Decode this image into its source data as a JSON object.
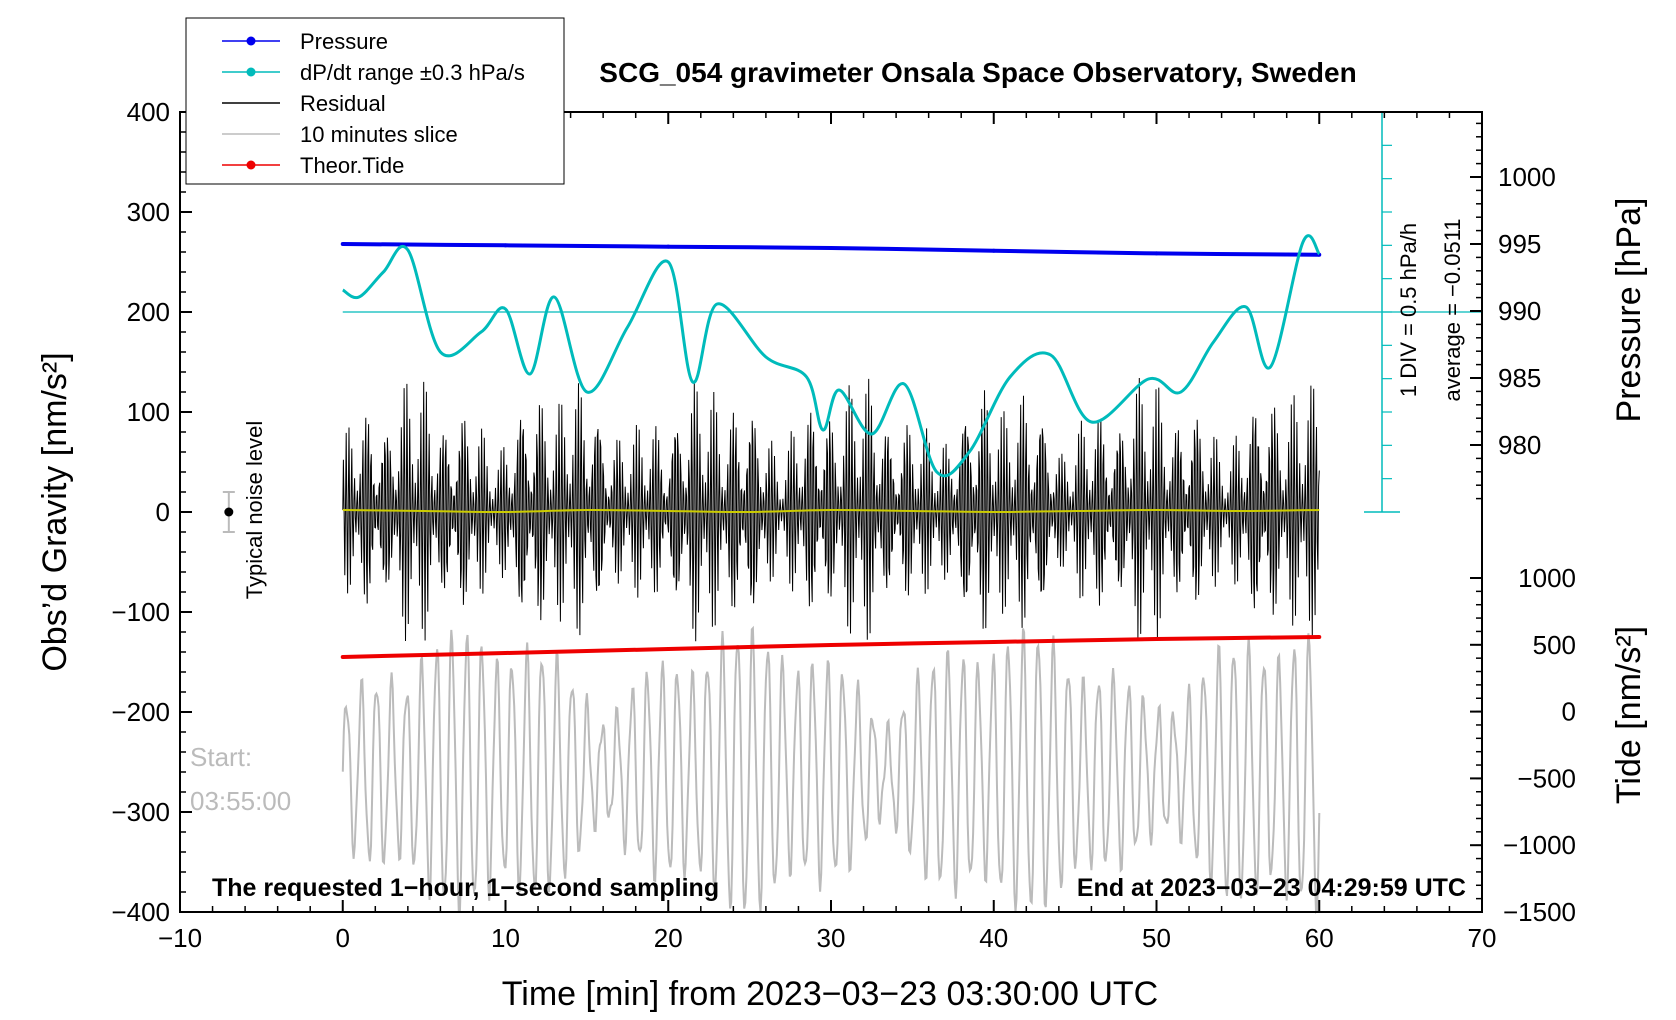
{
  "chart_data": {
    "type": "line",
    "title": "SCG_054 gravimeter Onsala Space Observatory, Sweden",
    "xlabel": "Time [min] from 2023−03−23 03:30:00 UTC",
    "ylabel_left": "Obs’d Gravity [nm/s²]",
    "ylabel_right_pressure": "Pressure [hPa]",
    "ylabel_right_tide": "Tide [nm/s²]",
    "xlim": [
      -10,
      70
    ],
    "ylim_left": [
      -400,
      400
    ],
    "pressure_axis_range": [
      975,
      1005
    ],
    "tide_axis_range": [
      -1500,
      1500
    ],
    "x_ticks": [
      "−10",
      "0",
      "10",
      "20",
      "30",
      "40",
      "50",
      "60",
      "70"
    ],
    "y_ticks_left": [
      "400",
      "300",
      "200",
      "100",
      "0",
      "−100",
      "−200",
      "−300",
      "−400"
    ],
    "pressure_ticks": [
      "1000",
      "995",
      "990",
      "985",
      "980"
    ],
    "tide_ticks": [
      "1000",
      "500",
      "0",
      "−500",
      "−1000",
      "−1500"
    ],
    "legend": [
      {
        "label": "Pressure",
        "color": "#0000ee",
        "marker": true
      },
      {
        "label": "dP/dt range ±0.3 hPa/s",
        "color": "#00bbbb",
        "marker": true
      },
      {
        "label": "Residual",
        "color": "#000000",
        "marker": false
      },
      {
        "label": "10 minutes slice",
        "color": "#bbbbbb",
        "marker": false
      },
      {
        "label": "Theor.Tide",
        "color": "#ee0000",
        "marker": true
      }
    ],
    "series": [
      {
        "name": "Pressure",
        "unit": "hPa",
        "x": [
          0,
          10,
          20,
          30,
          40,
          50,
          60
        ],
        "values": [
          995.0,
          994.9,
          994.8,
          994.7,
          994.5,
          994.3,
          994.2
        ]
      },
      {
        "name": "dP/dt (plotted on gravity scale)",
        "unit": "nm/s² equiv.",
        "x": [
          0,
          1,
          2.5,
          4,
          6,
          8.5,
          10,
          11.5,
          13,
          15,
          17.5,
          20,
          21.5,
          23,
          26,
          28.5,
          29.5,
          30.5,
          32.5,
          34.5,
          36.5,
          38.5,
          41,
          43.5,
          46,
          49.5,
          51.5,
          53.5,
          55.5,
          57,
          59,
          60
        ],
        "values": [
          222,
          215,
          240,
          262,
          160,
          180,
          203,
          138,
          215,
          120,
          185,
          250,
          130,
          208,
          155,
          135,
          82,
          122,
          78,
          128,
          40,
          60,
          135,
          157,
          90,
          133,
          120,
          170,
          205,
          145,
          270,
          258
        ]
      },
      {
        "name": "Residual",
        "unit": "nm/s²",
        "x": [
          0,
          5,
          10,
          15,
          20,
          25,
          30,
          35,
          40,
          45,
          50,
          55,
          60
        ],
        "values": [
          2,
          1,
          0,
          2,
          1,
          0,
          2,
          1,
          0,
          1,
          2,
          1,
          2
        ]
      },
      {
        "name": "Theor.Tide",
        "unit": "nm/s²",
        "x": [
          0,
          10,
          20,
          30,
          40,
          50,
          60
        ],
        "values": [
          -145,
          -141,
          -137,
          -133,
          -130,
          -127,
          -125
        ]
      }
    ],
    "noise_marker": {
      "label": "Typical noise level",
      "x": -7,
      "value": 0,
      "range": [
        -20,
        20
      ]
    },
    "dpdt_scale_note": "1 DIV = 0.5 hPa/h",
    "dpdt_average_note": "average = −0.0511",
    "footer_left": "The requested 1−hour, 1−second sampling",
    "footer_right": "End at 2023−03−23 04:29:59 UTC",
    "slice_start_label": "Start:",
    "slice_start_time": "03:55:00"
  }
}
